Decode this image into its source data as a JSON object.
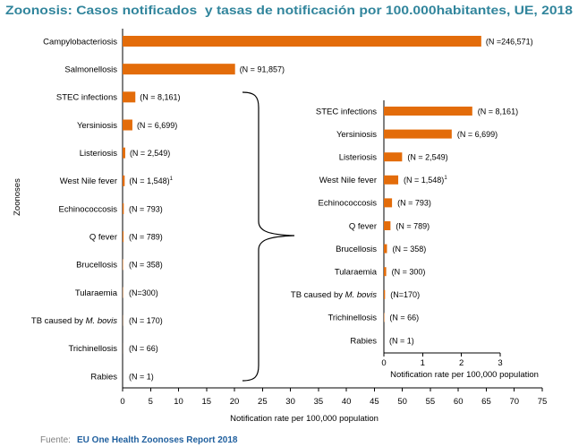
{
  "chart_data": [
    {
      "type": "bar",
      "orientation": "horizontal",
      "title": "Zoonosis: Casos notificados  y tasas de notificación por 100.000habitantes, UE, 2018",
      "categories": [
        "Campylobacteriosis",
        "Salmonellosis",
        "STEC infections",
        "Yersiniosis",
        "Listeriosis",
        "West Nile fever",
        "Echinococcosis",
        "Q fever",
        "Brucellosis",
        "Tularaemia",
        "TB caused by M. bovis",
        "Trichinellosis",
        "Rabies"
      ],
      "values": [
        64.1,
        20.1,
        2.28,
        1.75,
        0.47,
        0.37,
        0.21,
        0.17,
        0.08,
        0.06,
        0.03,
        0.01,
        0.0
      ],
      "annotations": [
        {
          "text": "(N =246,571)"
        },
        {
          "text": "(N = 91,857)"
        },
        {
          "text": "(N = 8,161)"
        },
        {
          "text": "(N = 6,699)"
        },
        {
          "text": "(N = 2,549)"
        },
        {
          "text": "(N = 1,548)",
          "sup": "1"
        },
        {
          "text": "(N = 793)"
        },
        {
          "text": "(N = 789)"
        },
        {
          "text": "(N = 358)"
        },
        {
          "text": "(N=300)"
        },
        {
          "text": "(N = 170)"
        },
        {
          "text": "(N = 66)"
        },
        {
          "text": "(N = 1)"
        }
      ],
      "xlabel": "Notification rate per 100,000 population",
      "ylabel": "Zoonoses",
      "xlim": [
        0,
        75
      ],
      "xticks": [
        0,
        5,
        10,
        15,
        20,
        25,
        30,
        35,
        40,
        45,
        50,
        55,
        60,
        65,
        70,
        75
      ],
      "grid": false,
      "legend": false
    },
    {
      "type": "bar",
      "orientation": "horizontal",
      "categories": [
        "STEC infections",
        "Yersiniosis",
        "Listeriosis",
        "West Nile fever",
        "Echinococcosis",
        "Q fever",
        "Brucellosis",
        "Tularaemia",
        "TB caused by M. bovis",
        "Trichinellosis",
        "Rabies"
      ],
      "values": [
        2.28,
        1.75,
        0.47,
        0.37,
        0.21,
        0.17,
        0.08,
        0.06,
        0.03,
        0.01,
        0.0
      ],
      "annotations": [
        {
          "text": "(N = 8,161)"
        },
        {
          "text": "(N = 6,699)"
        },
        {
          "text": "(N = 2,549)"
        },
        {
          "text": "(N = 1,548)",
          "sup": "1"
        },
        {
          "text": "(N = 793)"
        },
        {
          "text": "(N = 789)"
        },
        {
          "text": "(N = 358)"
        },
        {
          "text": "(N = 300)"
        },
        {
          "text": "(N=170)"
        },
        {
          "text": "(N = 66)"
        },
        {
          "text": "(N = 1)"
        }
      ],
      "xlabel": "Notification rate per 100,000 population",
      "xlim": [
        0,
        3
      ],
      "xticks": [
        0,
        1,
        2,
        3
      ],
      "grid": false,
      "legend": false
    }
  ],
  "source": {
    "label": "Fuente:",
    "text": "EU One Health Zoonoses Report 2018"
  },
  "colors": {
    "title": "#31859c",
    "bar": "#e36c0a",
    "source_label": "#7f7f7f",
    "source_text": "#1f5f9e"
  }
}
